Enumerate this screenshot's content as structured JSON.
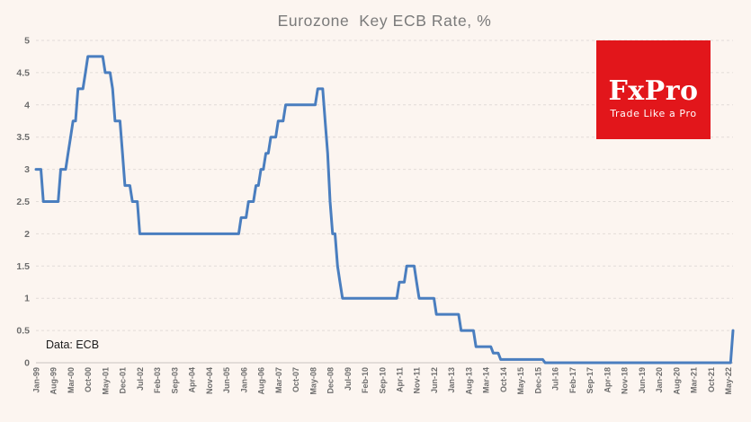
{
  "title": "Eurozone  Key ECB Rate, %",
  "annotation": {
    "source_label": "Data: ECB"
  },
  "logo": {
    "wordmark": "FxPro",
    "tagline": "Trade Like a Pro",
    "background_color": "#e2161b",
    "text_color": "#ffffff"
  },
  "colors": {
    "page_background": "#fcf5f0",
    "line": "#4a7ebf",
    "grid_line": "#e2dcd8",
    "axis_line": "#c9c3bf",
    "tick_label": "#6d6d6d",
    "title_text": "#7a7a7a"
  },
  "chart_data": {
    "type": "line",
    "title": "Eurozone Key ECB Rate, %",
    "series_name": "ECB Key Rate, %",
    "xlabel": "",
    "ylabel": "",
    "ylim": [
      0,
      5
    ],
    "y_ticks": [
      0,
      0.5,
      1,
      1.5,
      2,
      2.5,
      3,
      3.5,
      4,
      4.5,
      5
    ],
    "grid": "horizontal dashed",
    "legend": "none",
    "sampling": "monthly",
    "x_start_month": "Jan-99",
    "x_end_month": "Jul-22",
    "x_tick_interval_months": 7,
    "x_tick_labels": [
      "Jan-99",
      "Aug-99",
      "Mar-00",
      "Oct-00",
      "May-01",
      "Dec-01",
      "Jul-02",
      "Feb-03",
      "Sep-03",
      "Apr-04",
      "Nov-04",
      "Jun-05",
      "Jan-06",
      "Aug-06",
      "Mar-07",
      "Oct-07",
      "May-08",
      "Dec-08",
      "Jul-09",
      "Feb-10",
      "Sep-10",
      "Apr-11",
      "Nov-11",
      "Jun-12",
      "Jan-13",
      "Aug-13",
      "Mar-14",
      "Oct-14",
      "May-15",
      "Dec-15",
      "Jul-16",
      "Feb-17",
      "Sep-17",
      "Apr-18",
      "Nov-18",
      "Jun-19",
      "Jan-20",
      "Aug-20",
      "Mar-21",
      "Oct-21",
      "May-22"
    ],
    "rate_changes": [
      [
        "Jan-99",
        3.0
      ],
      [
        "Apr-99",
        2.5
      ],
      [
        "Nov-99",
        3.0
      ],
      [
        "Feb-00",
        3.25
      ],
      [
        "Mar-00",
        3.5
      ],
      [
        "Apr-00",
        3.75
      ],
      [
        "Jun-00",
        4.25
      ],
      [
        "Sep-00",
        4.5
      ],
      [
        "Oct-00",
        4.75
      ],
      [
        "May-01",
        4.5
      ],
      [
        "Aug-01",
        4.25
      ],
      [
        "Sep-01",
        3.75
      ],
      [
        "Dec-01",
        3.25
      ],
      [
        "Jan-02",
        2.75
      ],
      [
        "Apr-02",
        2.5
      ],
      [
        "Jul-02",
        2.0
      ],
      [
        "Dec-05",
        2.25
      ],
      [
        "Mar-06",
        2.5
      ],
      [
        "Jun-06",
        2.75
      ],
      [
        "Aug-06",
        3.0
      ],
      [
        "Oct-06",
        3.25
      ],
      [
        "Dec-06",
        3.5
      ],
      [
        "Mar-07",
        3.75
      ],
      [
        "Jun-07",
        4.0
      ],
      [
        "Jul-08",
        4.25
      ],
      [
        "Oct-08",
        3.75
      ],
      [
        "Nov-08",
        3.25
      ],
      [
        "Dec-08",
        2.5
      ],
      [
        "Jan-09",
        2.0
      ],
      [
        "Mar-09",
        1.5
      ],
      [
        "Apr-09",
        1.25
      ],
      [
        "May-09",
        1.0
      ],
      [
        "Apr-11",
        1.25
      ],
      [
        "Jul-11",
        1.5
      ],
      [
        "Nov-11",
        1.25
      ],
      [
        "Dec-11",
        1.0
      ],
      [
        "Jul-12",
        0.75
      ],
      [
        "May-13",
        0.5
      ],
      [
        "Nov-13",
        0.25
      ],
      [
        "Jun-14",
        0.15
      ],
      [
        "Sep-14",
        0.05
      ],
      [
        "Mar-16",
        0.0
      ],
      [
        "Jul-22",
        0.5
      ]
    ]
  }
}
